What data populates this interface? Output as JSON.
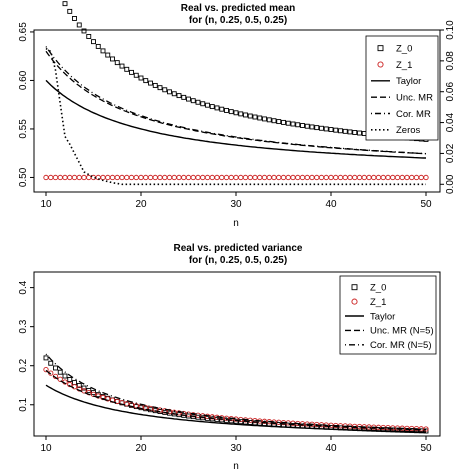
{
  "chart_data": [
    {
      "type": "line",
      "title": "Real vs. predicted mean",
      "subtitle": "for (n, 0.25, 0.5, 0.25)",
      "xlabel": "n",
      "ylabel": "",
      "xlim": [
        10,
        50
      ],
      "ylim": [
        0.485,
        0.652
      ],
      "ylim_right": [
        -0.005,
        0.1
      ],
      "xticks": [
        10,
        20,
        30,
        40,
        50
      ],
      "yticks": [
        0.5,
        0.55,
        0.6,
        0.65
      ],
      "yticks_right": [
        0.0,
        0.02,
        0.04,
        0.06,
        0.08,
        0.1
      ],
      "grid": false,
      "legend_position": "top-right",
      "series": [
        {
          "name": "Z_0",
          "kind": "points",
          "marker": "square",
          "color": "#000000",
          "formula": {
            "a": 0.5,
            "b": 1.9,
            "c": 3.0
          },
          "x_start": 10.0,
          "x_end": 50.0,
          "x_step": 0.5
        },
        {
          "name": "Z_1",
          "kind": "points",
          "marker": "circle",
          "color": "#cc2222",
          "formula": {
            "a": 0.5,
            "b": 0.0,
            "c": 0.0
          },
          "x_start": 10.0,
          "x_end": 50.0,
          "x_step": 0.5
        },
        {
          "name": "Taylor",
          "kind": "line",
          "dash": "solid",
          "color": "#000000",
          "formula": {
            "a": 0.5,
            "b": 1.0,
            "c": 0.0
          }
        },
        {
          "name": "Unc. MR",
          "kind": "line",
          "dash": "dashed",
          "color": "#000000",
          "formula": {
            "a": 0.5,
            "b": 1.2,
            "c": 1.0
          }
        },
        {
          "name": "Cor. MR",
          "kind": "line",
          "dash": "dotdash",
          "color": "#000000",
          "formula": {
            "a": 0.5,
            "b": 1.2,
            "c": 1.5
          }
        },
        {
          "name": "Zeros",
          "kind": "line",
          "dash": "dotted",
          "color": "#000000",
          "axis": "right",
          "x": [
            10.0,
            10.5,
            11.0,
            11.5,
            12.0,
            12.5,
            13.0,
            13.5,
            14.0,
            15.0,
            16.0,
            17.0,
            18.0,
            50.0
          ],
          "y": [
            0.088,
            0.086,
            0.074,
            0.052,
            0.031,
            0.026,
            0.02,
            0.014,
            0.008,
            0.0045,
            0.0025,
            0.001,
            0.0,
            0.0
          ]
        }
      ]
    },
    {
      "type": "line",
      "title": "Real vs. predicted variance",
      "subtitle": "for (n, 0.25, 0.5, 0.25)",
      "xlabel": "n",
      "ylabel": "",
      "xlim": [
        10,
        50
      ],
      "ylim": [
        0.02,
        0.44
      ],
      "xticks": [
        10,
        20,
        30,
        40,
        50
      ],
      "yticks": [
        0.1,
        0.2,
        0.3,
        0.4
      ],
      "grid": false,
      "legend_position": "top-right",
      "series": [
        {
          "name": "Z_0",
          "kind": "points",
          "marker": "square",
          "color": "#000000",
          "formula": {
            "a": 0.0,
            "b": 1.5,
            "c": 7.0
          },
          "x_start": 10.0,
          "x_end": 50.0,
          "x_step": 0.5
        },
        {
          "name": "Z_1",
          "kind": "points",
          "marker": "circle",
          "color": "#cc2222",
          "formula": {
            "a": 0.0,
            "b": 1.9,
            "c": 0.0
          },
          "x_start": 10.0,
          "x_end": 50.0,
          "x_step": 0.5
        },
        {
          "name": "Taylor",
          "kind": "line",
          "dash": "solid",
          "color": "#000000",
          "formula": {
            "a": 0.0,
            "b": 1.5,
            "c": 0.0
          }
        },
        {
          "name": "Unc. MR (N=5)",
          "kind": "line",
          "dash": "dashed",
          "color": "#000000",
          "formula": {
            "a": 0.0,
            "b": 1.75,
            "c": 1.3
          }
        },
        {
          "name": "Cor. MR (N=5)",
          "kind": "line",
          "dash": "dotdash",
          "color": "#000000",
          "formula": {
            "a": 0.0,
            "b": 1.75,
            "c": 5.5
          }
        }
      ]
    }
  ]
}
